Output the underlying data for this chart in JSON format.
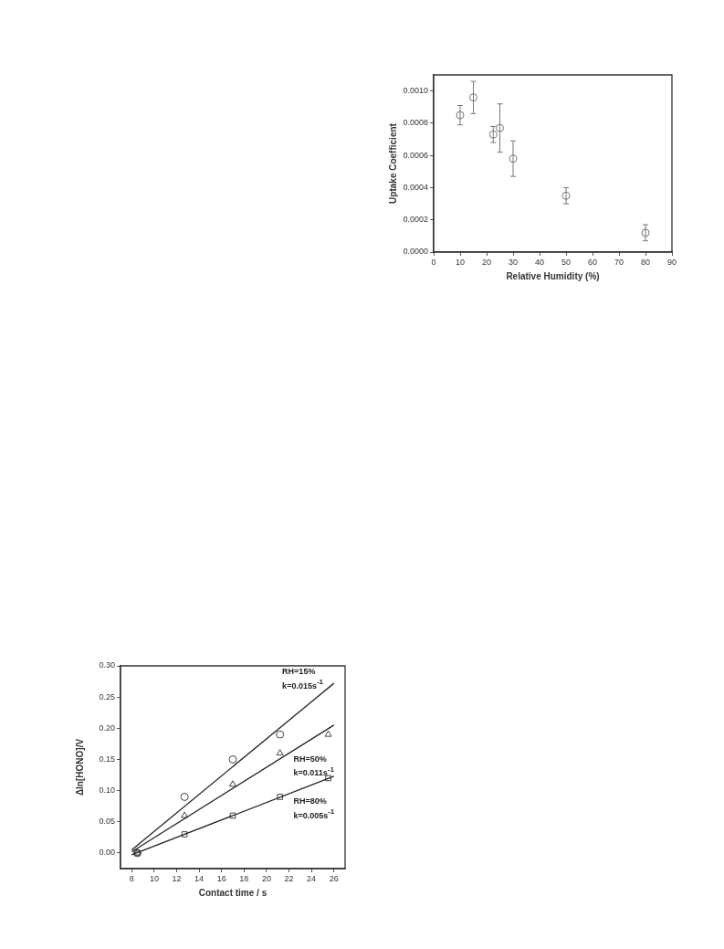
{
  "chart_data": [
    {
      "type": "scatter",
      "xlabel": "Relative Humidity (%)",
      "ylabel": "Uptake Coefficient",
      "color": "#777777",
      "marker": "circle",
      "grid": false,
      "legend": false,
      "x": [
        10,
        15,
        22.5,
        25,
        30,
        50,
        80
      ],
      "values": [
        0.00085,
        0.00096,
        0.00073,
        0.00077,
        0.00058,
        0.00035,
        0.00012
      ],
      "errors": [
        6e-05,
        0.0001,
        5e-05,
        0.00015,
        0.00011,
        5e-05,
        5e-05
      ],
      "xlim": [
        0,
        90
      ],
      "xticks": [
        0,
        10,
        20,
        30,
        40,
        50,
        60,
        70,
        80,
        90
      ],
      "ylim": [
        0,
        0.0011
      ],
      "yticks": [
        {
          "value": 0,
          "label": "0.0000"
        },
        {
          "value": 0.0002,
          "label": "0.0002"
        },
        {
          "value": 0.0004,
          "label": "0.0004"
        },
        {
          "value": 0.0006,
          "label": "0.0006"
        },
        {
          "value": 0.0008,
          "label": "0.0008"
        },
        {
          "value": 0.001,
          "label": "0.0010"
        }
      ]
    },
    {
      "type": "scatter",
      "xlabel": "Contact time / s",
      "ylabel": "Δln[HONO]/V",
      "grid": false,
      "legend": false,
      "series": [
        {
          "type": "scatter",
          "marker": "circle",
          "color": "#444444",
          "x": [
            8.5,
            12.7,
            17,
            21.2
          ],
          "values": [
            0,
            0.09,
            0.15,
            0.19
          ]
        },
        {
          "type": "scatter",
          "marker": "triangle",
          "color": "#444444",
          "x": [
            8.5,
            12.7,
            17,
            21.2,
            25.5
          ],
          "values": [
            0,
            0.06,
            0.11,
            0.16,
            0.19
          ]
        },
        {
          "type": "scatter",
          "marker": "square",
          "color": "#444444",
          "x": [
            8.5,
            12.7,
            17,
            21.2,
            25.5
          ],
          "values": [
            0,
            0.03,
            0.06,
            0.09,
            0.12
          ]
        },
        {
          "type": "line",
          "marker": "none",
          "color": "#222222",
          "x": [
            8,
            26
          ],
          "values": [
            0.005,
            0.272
          ]
        },
        {
          "type": "line",
          "marker": "none",
          "color": "#222222",
          "x": [
            8,
            26
          ],
          "values": [
            0.002,
            0.205
          ]
        },
        {
          "type": "line",
          "marker": "none",
          "color": "#222222",
          "x": [
            8,
            26
          ],
          "values": [
            -0.003,
            0.123
          ]
        }
      ],
      "annotations": [
        "RH=15%",
        "k=0.015s$^{-1}$",
        "RH=50%",
        "k=0.011s$^{-1}$",
        "RH=80%",
        "k=0.005s$^{-1}$"
      ],
      "xlim": [
        7,
        27
      ],
      "xticks": [
        8,
        10,
        12,
        14,
        16,
        18,
        20,
        22,
        24,
        26
      ],
      "ylim": [
        -0.025,
        0.3
      ],
      "yticks": [
        {
          "value": 0,
          "label": "0.00"
        },
        {
          "value": 0.05,
          "label": "0.05"
        },
        {
          "value": 0.1,
          "label": "0.10"
        },
        {
          "value": 0.15,
          "label": "0.15"
        },
        {
          "value": 0.2,
          "label": "0.20"
        },
        {
          "value": 0.25,
          "label": "0.25"
        },
        {
          "value": 0.3,
          "label": "0.30"
        }
      ]
    }
  ]
}
